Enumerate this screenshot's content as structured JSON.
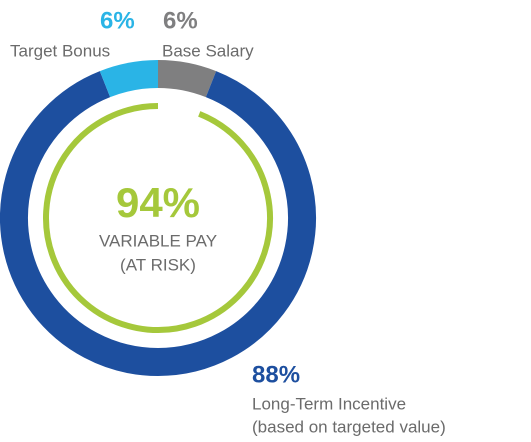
{
  "chart_data": {
    "type": "donut",
    "categories": [
      "Base Salary",
      "Long-Term Incentive",
      "Target Bonus"
    ],
    "values": [
      6,
      88,
      6
    ],
    "value_labels": [
      "6%",
      "88%",
      "6%"
    ],
    "colors": [
      "#7f7f80",
      "#1d4f9f",
      "#2ab4e6"
    ],
    "annotations": [
      {
        "text": "(based on targeted value)"
      }
    ],
    "inner_ring": {
      "value": 94,
      "value_label": "94%",
      "label": [
        "VARIABLE PAY",
        "(AT RISK)"
      ],
      "color": "#a5c83b"
    }
  }
}
